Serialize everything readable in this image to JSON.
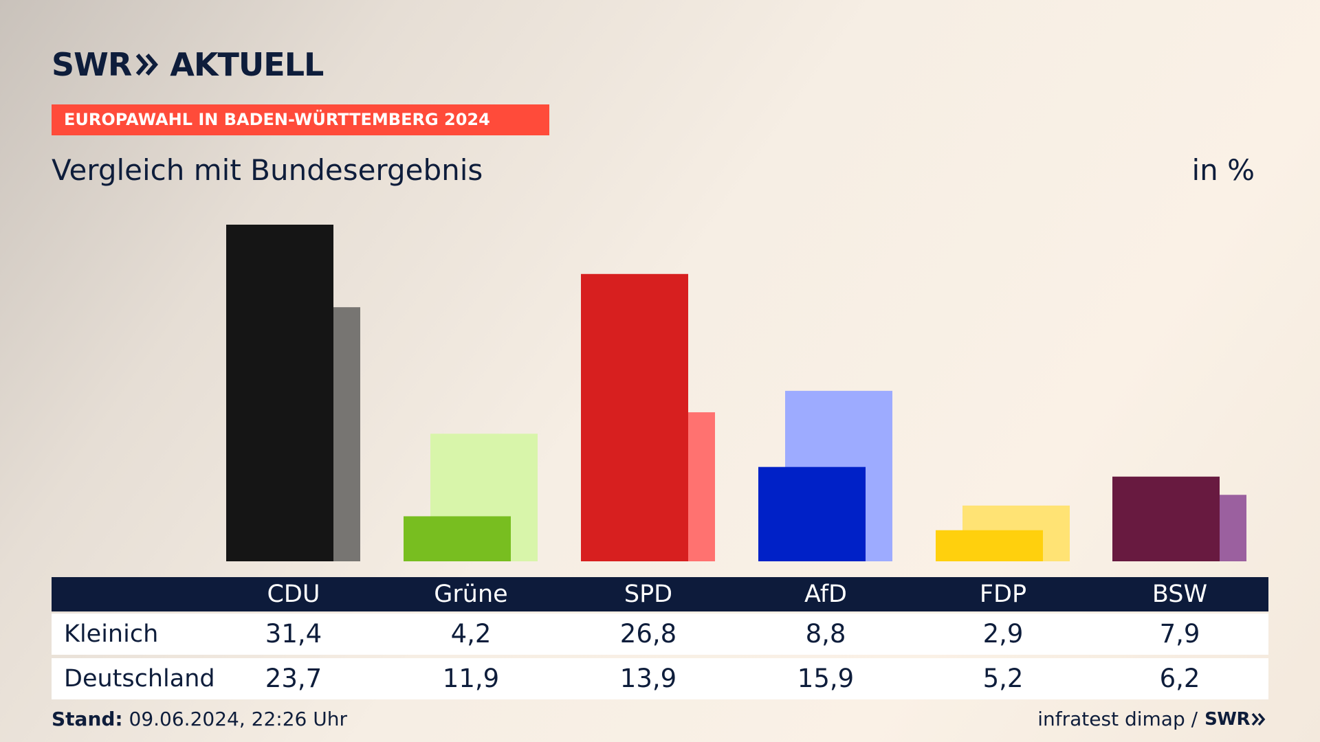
{
  "brand": {
    "swr": "SWR",
    "aktuell": "AKTUELL"
  },
  "banner": "EUROPAWAHL IN BADEN-WÜRTTEMBERG 2024",
  "title": "Vergleich mit Bundesergebnis",
  "unit": "in %",
  "rows": [
    "Kleinich",
    "Deutschland"
  ],
  "footer": {
    "stand_label": "Stand:",
    "stand_value": " 09.06.2024, 22:26 Uhr",
    "source": "infratest dimap /",
    "source_brand": "SWR"
  },
  "chart_data": {
    "type": "bar",
    "categories": [
      "CDU",
      "Grüne",
      "SPD",
      "AfD",
      "FDP",
      "BSW"
    ],
    "series": [
      {
        "name": "Kleinich",
        "values": [
          31.4,
          4.2,
          26.8,
          8.8,
          2.9,
          7.9
        ]
      },
      {
        "name": "Deutschland",
        "values": [
          23.7,
          11.9,
          13.9,
          15.9,
          5.2,
          6.2
        ]
      }
    ],
    "value_labels": [
      [
        "31,4",
        "4,2",
        "26,8",
        "8,8",
        "2,9",
        "7,9"
      ],
      [
        "23,7",
        "11,9",
        "13,9",
        "15,9",
        "5,2",
        "6,2"
      ]
    ],
    "colors": {
      "primary": [
        "#151515",
        "#78be20",
        "#d71f1f",
        "#0021c7",
        "#ffd00d",
        "#681a40"
      ],
      "secondary": [
        "#777572",
        "#d8f5aa",
        "#ff7270",
        "#9dabff",
        "#ffe374",
        "#9b609f"
      ]
    },
    "ylim": [
      0,
      31.4
    ],
    "grid": false,
    "legend": "none"
  }
}
